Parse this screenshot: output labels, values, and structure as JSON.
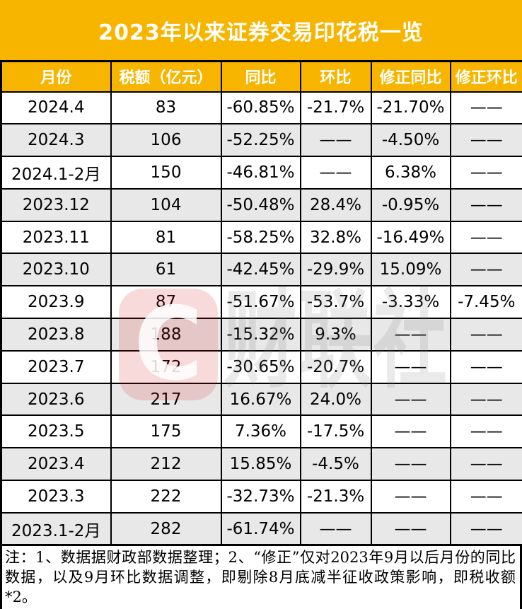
{
  "title": "2023年以来证券交易印花税一览",
  "colors": {
    "accent_orange": "#F8B500",
    "row_alt_gray": "#E8E8E8",
    "border_black": "#000000",
    "header_text_white": "#FFFFFF",
    "watermark_red": "#D32626"
  },
  "chart_data": {
    "type": "table",
    "title": "2023年以来证券交易印花税一览",
    "columns": [
      "月份",
      "税额（亿元）",
      "同比",
      "环比",
      "修正同比",
      "修正环比"
    ],
    "rows": [
      [
        "2024.4",
        "83",
        "-60.85%",
        "-21.7%",
        "-21.70%",
        "——"
      ],
      [
        "2024.3",
        "106",
        "-52.25%",
        "——",
        "-4.50%",
        "——"
      ],
      [
        "2024.1-2月",
        "150",
        "-46.81%",
        "——",
        "6.38%",
        "——"
      ],
      [
        "2023.12",
        "104",
        "-50.48%",
        "28.4%",
        "-0.95%",
        "——"
      ],
      [
        "2023.11",
        "81",
        "-58.25%",
        "32.8%",
        "-16.49%",
        "——"
      ],
      [
        "2023.10",
        "61",
        "-42.45%",
        "-29.9%",
        "15.09%",
        "——"
      ],
      [
        "2023.9",
        "87",
        "-51.67%",
        "-53.7%",
        "-3.33%",
        "-7.45%"
      ],
      [
        "2023.8",
        "188",
        "-15.32%",
        "9.3%",
        "——",
        "——"
      ],
      [
        "2023.7",
        "172",
        "-30.65%",
        "-20.7%",
        "——",
        "——"
      ],
      [
        "2023.6",
        "217",
        "16.67%",
        "24.0%",
        "——",
        "——"
      ],
      [
        "2023.5",
        "175",
        "7.36%",
        "-17.5%",
        "——",
        "——"
      ],
      [
        "2023.4",
        "212",
        "15.85%",
        "-4.5%",
        "——",
        "——"
      ],
      [
        "2023.3",
        "222",
        "-32.73%",
        "-21.3%",
        "——",
        "——"
      ],
      [
        "2023.1-2月",
        "282",
        "-61.74%",
        "——",
        "——",
        "——"
      ]
    ]
  },
  "note": "注：1、数据据财政部数据整理；2、“修正”仅对2023年9月以后月份的同比数据，以及9月环比数据调整，即剔除8月底减半征收政策影响，即税收额*2。",
  "watermark": {
    "logo_letter": "C",
    "brand_text": "财联社"
  }
}
